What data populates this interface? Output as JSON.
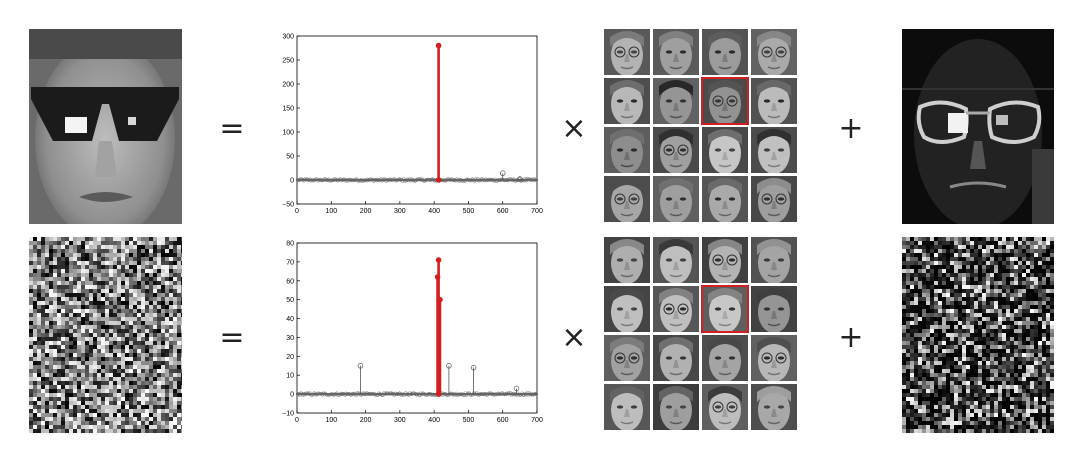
{
  "rows": [
    {
      "name": "sunglasses-face",
      "equals": "=",
      "times": "×",
      "plus": "+",
      "chart_data": {
        "type": "stem",
        "x_ticks": [
          "0",
          "100",
          "200",
          "300",
          "400",
          "500",
          "600",
          "700"
        ],
        "y_ticks": [
          "300",
          "250",
          "200",
          "150",
          "100",
          "50",
          "0",
          "−50"
        ],
        "xlim": [
          0,
          700
        ],
        "ylim": [
          -50,
          300
        ],
        "highlight_stems": [
          {
            "x": 413,
            "y": 280
          },
          {
            "x": 413,
            "y": 0
          }
        ],
        "minor_stems": [
          {
            "x": 600,
            "y": 14
          },
          {
            "x": 650,
            "y": 2
          }
        ]
      },
      "selected_face_index": 6
    },
    {
      "name": "noise-face",
      "equals": "=",
      "times": "×",
      "plus": "+",
      "chart_data": {
        "type": "stem",
        "x_ticks": [
          "0",
          "100",
          "200",
          "300",
          "400",
          "500",
          "600",
          "700"
        ],
        "y_ticks": [
          "80",
          "70",
          "60",
          "50",
          "40",
          "30",
          "20",
          "10",
          "0",
          "−10"
        ],
        "xlim": [
          0,
          700
        ],
        "ylim": [
          -10,
          80
        ],
        "highlight_stems": [
          {
            "x": 413,
            "y": 71
          },
          {
            "x": 410,
            "y": 62
          },
          {
            "x": 417,
            "y": 50
          },
          {
            "x": 413,
            "y": 0
          }
        ],
        "minor_stems": [
          {
            "x": 185,
            "y": 15
          },
          {
            "x": 443,
            "y": 15
          },
          {
            "x": 515,
            "y": 14
          },
          {
            "x": 640,
            "y": 3
          }
        ]
      },
      "selected_face_index": 6
    }
  ],
  "colors": {
    "stem_highlight": "#d21f1f",
    "stem_minor": "#555555",
    "selection_box": "#d21f1f"
  }
}
